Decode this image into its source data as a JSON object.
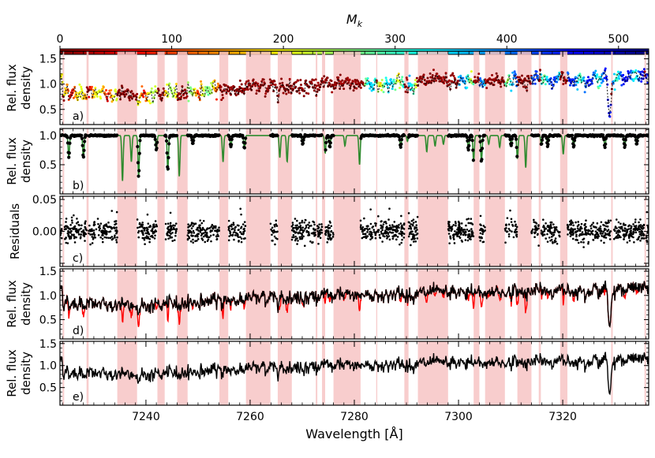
{
  "chart_data": {
    "type": "line",
    "xlabel": "Wavelength [Å]",
    "xlim": [
      7223.5,
      7336.5
    ],
    "x_ticks": [
      7240,
      7260,
      7280,
      7300,
      7320
    ],
    "shaded_regions": [
      [
        7224.0,
        7224.3
      ],
      [
        7228.6,
        7229.0
      ],
      [
        7234.5,
        7238.3
      ],
      [
        7242.2,
        7243.6
      ],
      [
        7246.0,
        7248.0
      ],
      [
        7254.1,
        7255.8
      ],
      [
        7259.2,
        7263.9
      ],
      [
        7265.3,
        7268.0
      ],
      [
        7272.6,
        7272.9
      ],
      [
        7273.8,
        7274.4
      ],
      [
        7276.0,
        7281.2
      ],
      [
        7284.2,
        7284.4
      ],
      [
        7289.6,
        7290.4
      ],
      [
        7292.2,
        7298.0
      ],
      [
        7302.9,
        7304.0
      ],
      [
        7305.1,
        7308.9
      ],
      [
        7311.3,
        7314.0
      ],
      [
        7315.4,
        7315.8
      ],
      [
        7319.5,
        7320.9
      ],
      [
        7329.3,
        7329.6
      ],
      [
        7335.7,
        7336.0
      ]
    ],
    "colorbar": {
      "label": "M_k",
      "ticks": [
        0,
        100,
        200,
        300,
        400,
        500
      ],
      "range": [
        0,
        527
      ],
      "colormap": [
        "#7f0000",
        "#ff0000",
        "#ff8000",
        "#ffff00",
        "#80ff80",
        "#00ffff",
        "#0080ff",
        "#0000ff",
        "#00007f"
      ]
    },
    "panels": [
      {
        "id": "a",
        "panel_label": "a)",
        "ylabel": [
          "Rel. flux",
          "density"
        ],
        "ylim": [
          0.2,
          1.65
        ],
        "y_ticks": [
          0.5,
          1.0,
          1.5
        ],
        "y_tick_labels": [
          "0.5",
          "1.0",
          "1.5"
        ],
        "series": [
          {
            "kind": "colored-points",
            "color_by": "M_k",
            "x": [
              7224,
              7232,
              7240,
              7248,
              7256,
              7264,
              7272,
              7280,
              7288,
              7296,
              7304,
              7312,
              7320,
              7328,
              7336
            ],
            "y": [
              0.85,
              0.8,
              0.78,
              0.85,
              0.9,
              0.95,
              0.98,
              1.0,
              1.02,
              1.05,
              1.05,
              1.08,
              1.1,
              1.12,
              1.15
            ],
            "notable_dips": [
              {
                "x": 7329.0,
                "y": 0.35
              }
            ]
          }
        ]
      },
      {
        "id": "b",
        "panel_label": "b)",
        "ylabel": [
          "Rel. flux",
          "density"
        ],
        "ylim": [
          0.0,
          1.12
        ],
        "y_ticks": [
          0.5,
          1.0
        ],
        "y_tick_labels": [
          "0.5",
          "1.0"
        ],
        "series": [
          {
            "kind": "line",
            "color": "#2e8b2e",
            "continuum": 1.0,
            "lines": [
              [
                7225.2,
                0.62
              ],
              [
                7228.0,
                0.62
              ],
              [
                7235.5,
                0.22
              ],
              [
                7237.2,
                0.55
              ],
              [
                7238.6,
                0.3
              ],
              [
                7242.0,
                0.75
              ],
              [
                7244.2,
                0.4
              ],
              [
                7246.4,
                0.3
              ],
              [
                7249.0,
                0.85
              ],
              [
                7254.8,
                0.55
              ],
              [
                7256.3,
                0.8
              ],
              [
                7258.9,
                0.78
              ],
              [
                7265.7,
                0.62
              ],
              [
                7267.1,
                0.55
              ],
              [
                7270.1,
                0.85
              ],
              [
                7274.4,
                0.7
              ],
              [
                7275.3,
                0.8
              ],
              [
                7278.2,
                0.82
              ],
              [
                7281.0,
                0.5
              ],
              [
                7288.9,
                0.8
              ],
              [
                7290.2,
                0.9
              ],
              [
                7293.9,
                0.72
              ],
              [
                7295.5,
                0.82
              ],
              [
                7297.1,
                0.85
              ],
              [
                7301.9,
                0.75
              ],
              [
                7302.9,
                0.55
              ],
              [
                7304.4,
                0.55
              ],
              [
                7305.8,
                0.85
              ],
              [
                7307.9,
                0.8
              ],
              [
                7310.1,
                0.82
              ],
              [
                7311.3,
                0.6
              ],
              [
                7312.9,
                0.45
              ],
              [
                7315.9,
                0.85
              ],
              [
                7317.1,
                0.82
              ],
              [
                7320.1,
                0.68
              ],
              [
                7322.1,
                0.8
              ],
              [
                7328.1,
                0.8
              ],
              [
                7331.9,
                0.8
              ],
              [
                7334.2,
                0.85
              ]
            ]
          },
          {
            "kind": "points",
            "color": "#000000",
            "note": "observed points outside shaded regions"
          }
        ]
      },
      {
        "id": "c",
        "panel_label": "c)",
        "ylabel": [
          "Residuals"
        ],
        "ylim": [
          -0.055,
          0.055
        ],
        "y_ticks": [
          -0.05,
          0.0,
          0.05
        ],
        "y_tick_labels": [
          "",
          "0.00",
          "0.05"
        ],
        "series": [
          {
            "kind": "points",
            "color": "#000000",
            "center": 0.0,
            "typical_scatter": 0.008
          }
        ]
      },
      {
        "id": "d",
        "panel_label": "d)",
        "ylabel": [
          "Rel. flux",
          "density"
        ],
        "ylim": [
          0.1,
          1.55
        ],
        "y_ticks": [
          0.5,
          1.0,
          1.5
        ],
        "y_tick_labels": [
          "0.5",
          "1.0",
          "1.5"
        ],
        "series": [
          {
            "kind": "line",
            "color": "#ff0000",
            "note": "observed spectrum"
          },
          {
            "kind": "line",
            "color": "#000000",
            "note": "corrected spectrum",
            "notable_dips": [
              {
                "x": 7329.0,
                "y": 0.3
              }
            ]
          }
        ]
      },
      {
        "id": "e",
        "panel_label": "e)",
        "ylabel": [
          "Rel. flux",
          "density"
        ],
        "ylim": [
          0.1,
          1.55
        ],
        "y_ticks": [
          0.5,
          1.0,
          1.5
        ],
        "y_tick_labels": [
          "0.5",
          "1.0",
          "1.5"
        ],
        "series": [
          {
            "kind": "line",
            "color": "#000000",
            "notable_dips": [
              {
                "x": 7329.0,
                "y": 0.32
              }
            ]
          }
        ]
      }
    ]
  }
}
